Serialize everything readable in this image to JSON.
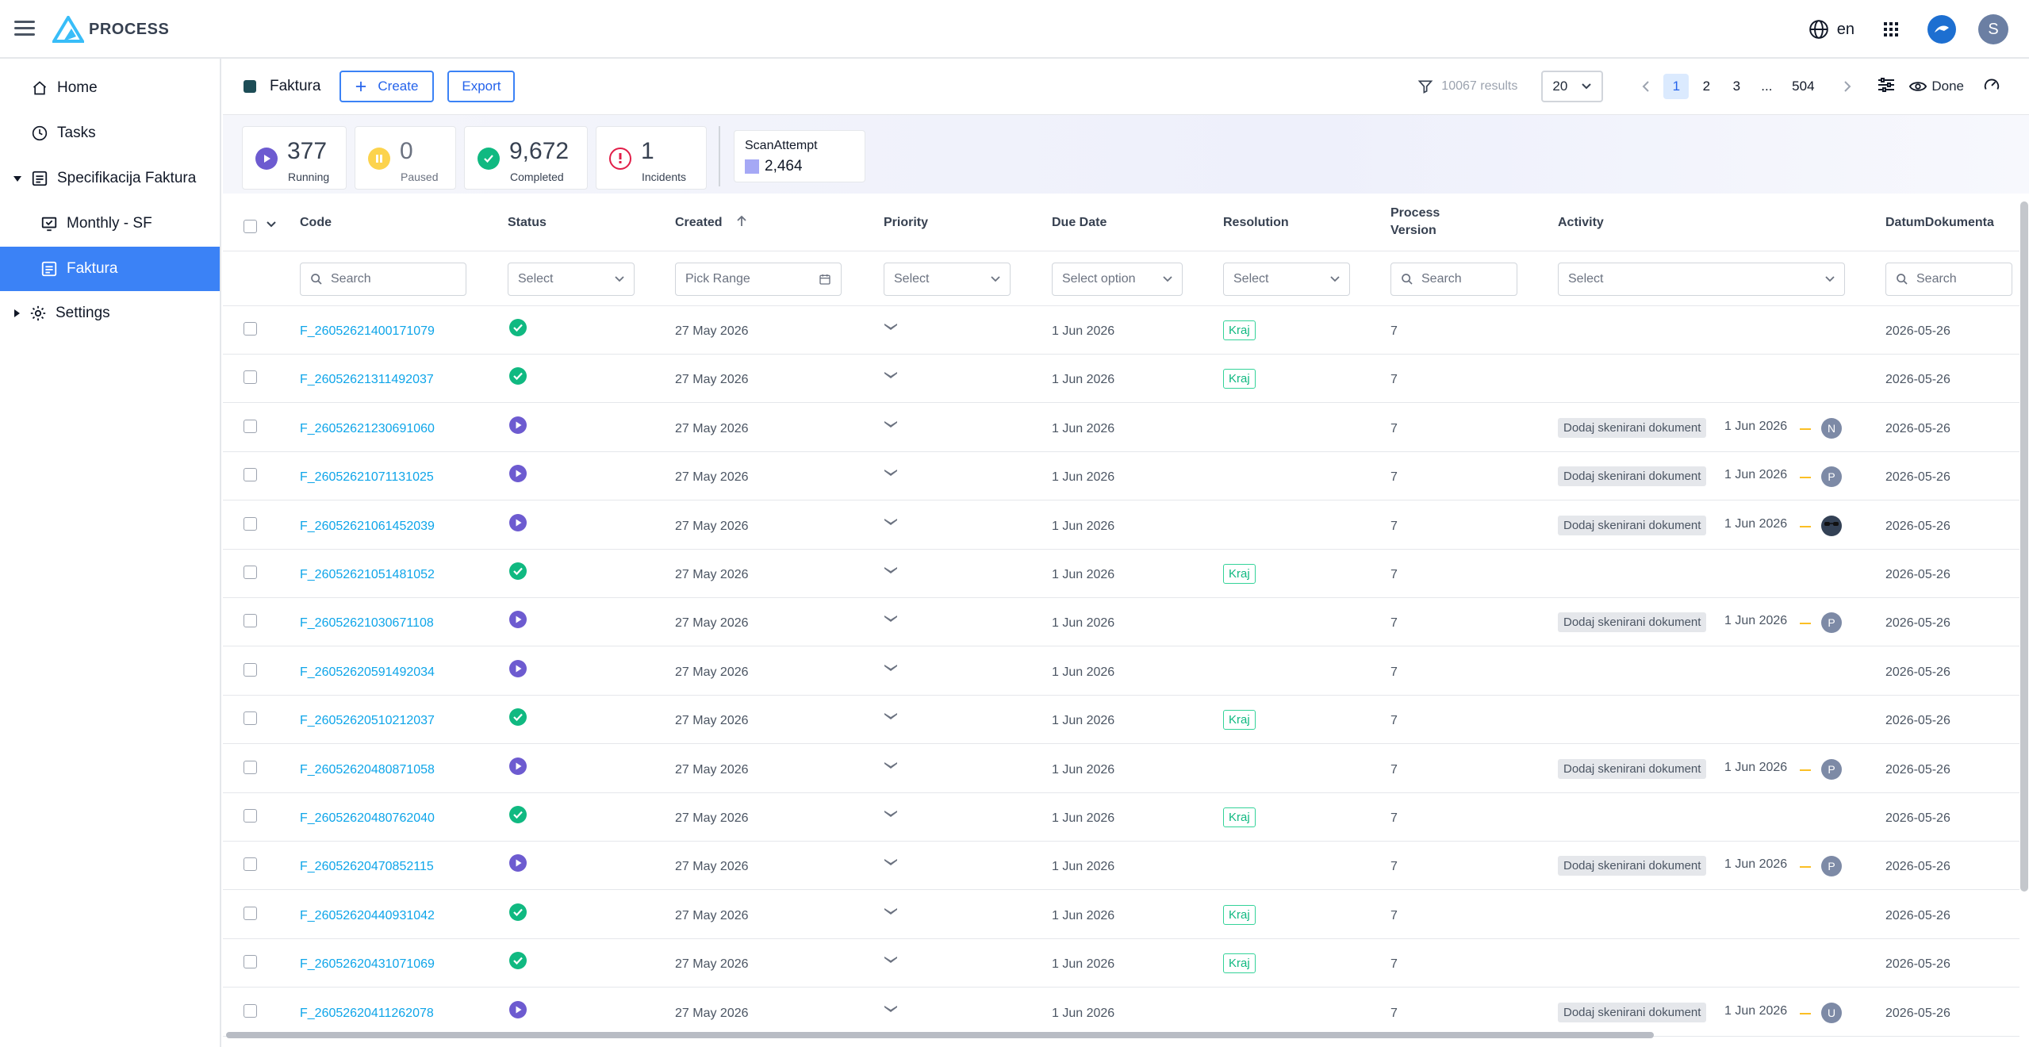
{
  "app": {
    "name": "PROCESS"
  },
  "topbar": {
    "language": "en",
    "user_initial": "S"
  },
  "sidebar": {
    "items": [
      {
        "label": "Home",
        "icon": "home-icon"
      },
      {
        "label": "Tasks",
        "icon": "clock-icon"
      },
      {
        "label": "Specifikacija Faktura",
        "icon": "document-icon",
        "expanded": true
      },
      {
        "label": "Monthly - SF",
        "icon": "monitor-icon"
      },
      {
        "label": "Faktura",
        "icon": "document-icon",
        "active": true
      },
      {
        "label": "Settings",
        "icon": "gear-icon"
      }
    ]
  },
  "toolbar": {
    "title": "Faktura",
    "create_label": "Create",
    "export_label": "Export",
    "results": "10067 results",
    "page_size": "20",
    "pages": [
      "1",
      "2",
      "3",
      "...",
      "504"
    ],
    "current_page": "1",
    "done_label": "Done"
  },
  "kpis": {
    "running": {
      "value": "377",
      "label": "Running",
      "color": "#6d5bd0"
    },
    "paused": {
      "value": "0",
      "label": "Paused",
      "color": "#fbbf24"
    },
    "completed": {
      "value": "9,672",
      "label": "Completed",
      "color": "#10b981"
    },
    "incidents": {
      "value": "1",
      "label": "Incidents",
      "color": "#e11d48"
    },
    "scan": {
      "label": "ScanAttempt",
      "value": "2,464",
      "color": "#a5a8f5"
    }
  },
  "table": {
    "columns": {
      "code": "Code",
      "status": "Status",
      "created": "Created",
      "priority": "Priority",
      "due_date": "Due Date",
      "resolution": "Resolution",
      "process_version_1": "Process",
      "process_version_2": "Version",
      "activity": "Activity",
      "datum": "DatumDokumenta"
    },
    "filters": {
      "code": "Search",
      "status": "Select",
      "created": "Pick Range",
      "priority": "Select",
      "due_date": "Select option",
      "resolution": "Select",
      "process_version": "Search",
      "activity": "Select",
      "datum": "Search"
    },
    "rows": [
      {
        "code": "F_26052621400171079",
        "status": "completed",
        "created": "27 May 2026",
        "due": "1 Jun 2026",
        "resolution": "Kraj",
        "version": "7",
        "activity": "",
        "activity_date": "",
        "assignee": "",
        "datum": "2026-05-26"
      },
      {
        "code": "F_26052621311492037",
        "status": "completed",
        "created": "27 May 2026",
        "due": "1 Jun 2026",
        "resolution": "Kraj",
        "version": "7",
        "activity": "",
        "activity_date": "",
        "assignee": "",
        "datum": "2026-05-26"
      },
      {
        "code": "F_26052621230691060",
        "status": "running",
        "created": "27 May 2026",
        "due": "1 Jun 2026",
        "resolution": "",
        "version": "7",
        "activity": "Dodaj skenirani dokument",
        "activity_date": "1 Jun 2026",
        "assignee": "N",
        "datum": "2026-05-26"
      },
      {
        "code": "F_26052621071131025",
        "status": "running",
        "created": "27 May 2026",
        "due": "1 Jun 2026",
        "resolution": "",
        "version": "7",
        "activity": "Dodaj skenirani dokument",
        "activity_date": "1 Jun 2026",
        "assignee": "P",
        "datum": "2026-05-26"
      },
      {
        "code": "F_26052621061452039",
        "status": "running",
        "created": "27 May 2026",
        "due": "1 Jun 2026",
        "resolution": "",
        "version": "7",
        "activity": "Dodaj skenirani dokument",
        "activity_date": "1 Jun 2026",
        "assignee": "photo",
        "datum": "2026-05-26"
      },
      {
        "code": "F_26052621051481052",
        "status": "completed",
        "created": "27 May 2026",
        "due": "1 Jun 2026",
        "resolution": "Kraj",
        "version": "7",
        "activity": "",
        "activity_date": "",
        "assignee": "",
        "datum": "2026-05-26"
      },
      {
        "code": "F_26052621030671108",
        "status": "running",
        "created": "27 May 2026",
        "due": "1 Jun 2026",
        "resolution": "",
        "version": "7",
        "activity": "Dodaj skenirani dokument",
        "activity_date": "1 Jun 2026",
        "assignee": "P",
        "datum": "2026-05-26"
      },
      {
        "code": "F_26052620591492034",
        "status": "running",
        "created": "27 May 2026",
        "due": "1 Jun 2026",
        "resolution": "",
        "version": "7",
        "activity": "",
        "activity_date": "",
        "assignee": "",
        "datum": "2026-05-26"
      },
      {
        "code": "F_26052620510212037",
        "status": "completed",
        "created": "27 May 2026",
        "due": "1 Jun 2026",
        "resolution": "Kraj",
        "version": "7",
        "activity": "",
        "activity_date": "",
        "assignee": "",
        "datum": "2026-05-26"
      },
      {
        "code": "F_26052620480871058",
        "status": "running",
        "created": "27 May 2026",
        "due": "1 Jun 2026",
        "resolution": "",
        "version": "7",
        "activity": "Dodaj skenirani dokument",
        "activity_date": "1 Jun 2026",
        "assignee": "P",
        "datum": "2026-05-26"
      },
      {
        "code": "F_26052620480762040",
        "status": "completed",
        "created": "27 May 2026",
        "due": "1 Jun 2026",
        "resolution": "Kraj",
        "version": "7",
        "activity": "",
        "activity_date": "",
        "assignee": "",
        "datum": "2026-05-26"
      },
      {
        "code": "F_26052620470852115",
        "status": "running",
        "created": "27 May 2026",
        "due": "1 Jun 2026",
        "resolution": "",
        "version": "7",
        "activity": "Dodaj skenirani dokument",
        "activity_date": "1 Jun 2026",
        "assignee": "P",
        "datum": "2026-05-26"
      },
      {
        "code": "F_26052620440931042",
        "status": "completed",
        "created": "27 May 2026",
        "due": "1 Jun 2026",
        "resolution": "Kraj",
        "version": "7",
        "activity": "",
        "activity_date": "",
        "assignee": "",
        "datum": "2026-05-26"
      },
      {
        "code": "F_26052620431071069",
        "status": "completed",
        "created": "27 May 2026",
        "due": "1 Jun 2026",
        "resolution": "Kraj",
        "version": "7",
        "activity": "",
        "activity_date": "",
        "assignee": "",
        "datum": "2026-05-26"
      },
      {
        "code": "F_26052620411262078",
        "status": "running",
        "created": "27 May 2026",
        "due": "1 Jun 2026",
        "resolution": "",
        "version": "7",
        "activity": "Dodaj skenirani dokument",
        "activity_date": "1 Jun 2026",
        "assignee": "U",
        "datum": "2026-05-26"
      }
    ]
  }
}
